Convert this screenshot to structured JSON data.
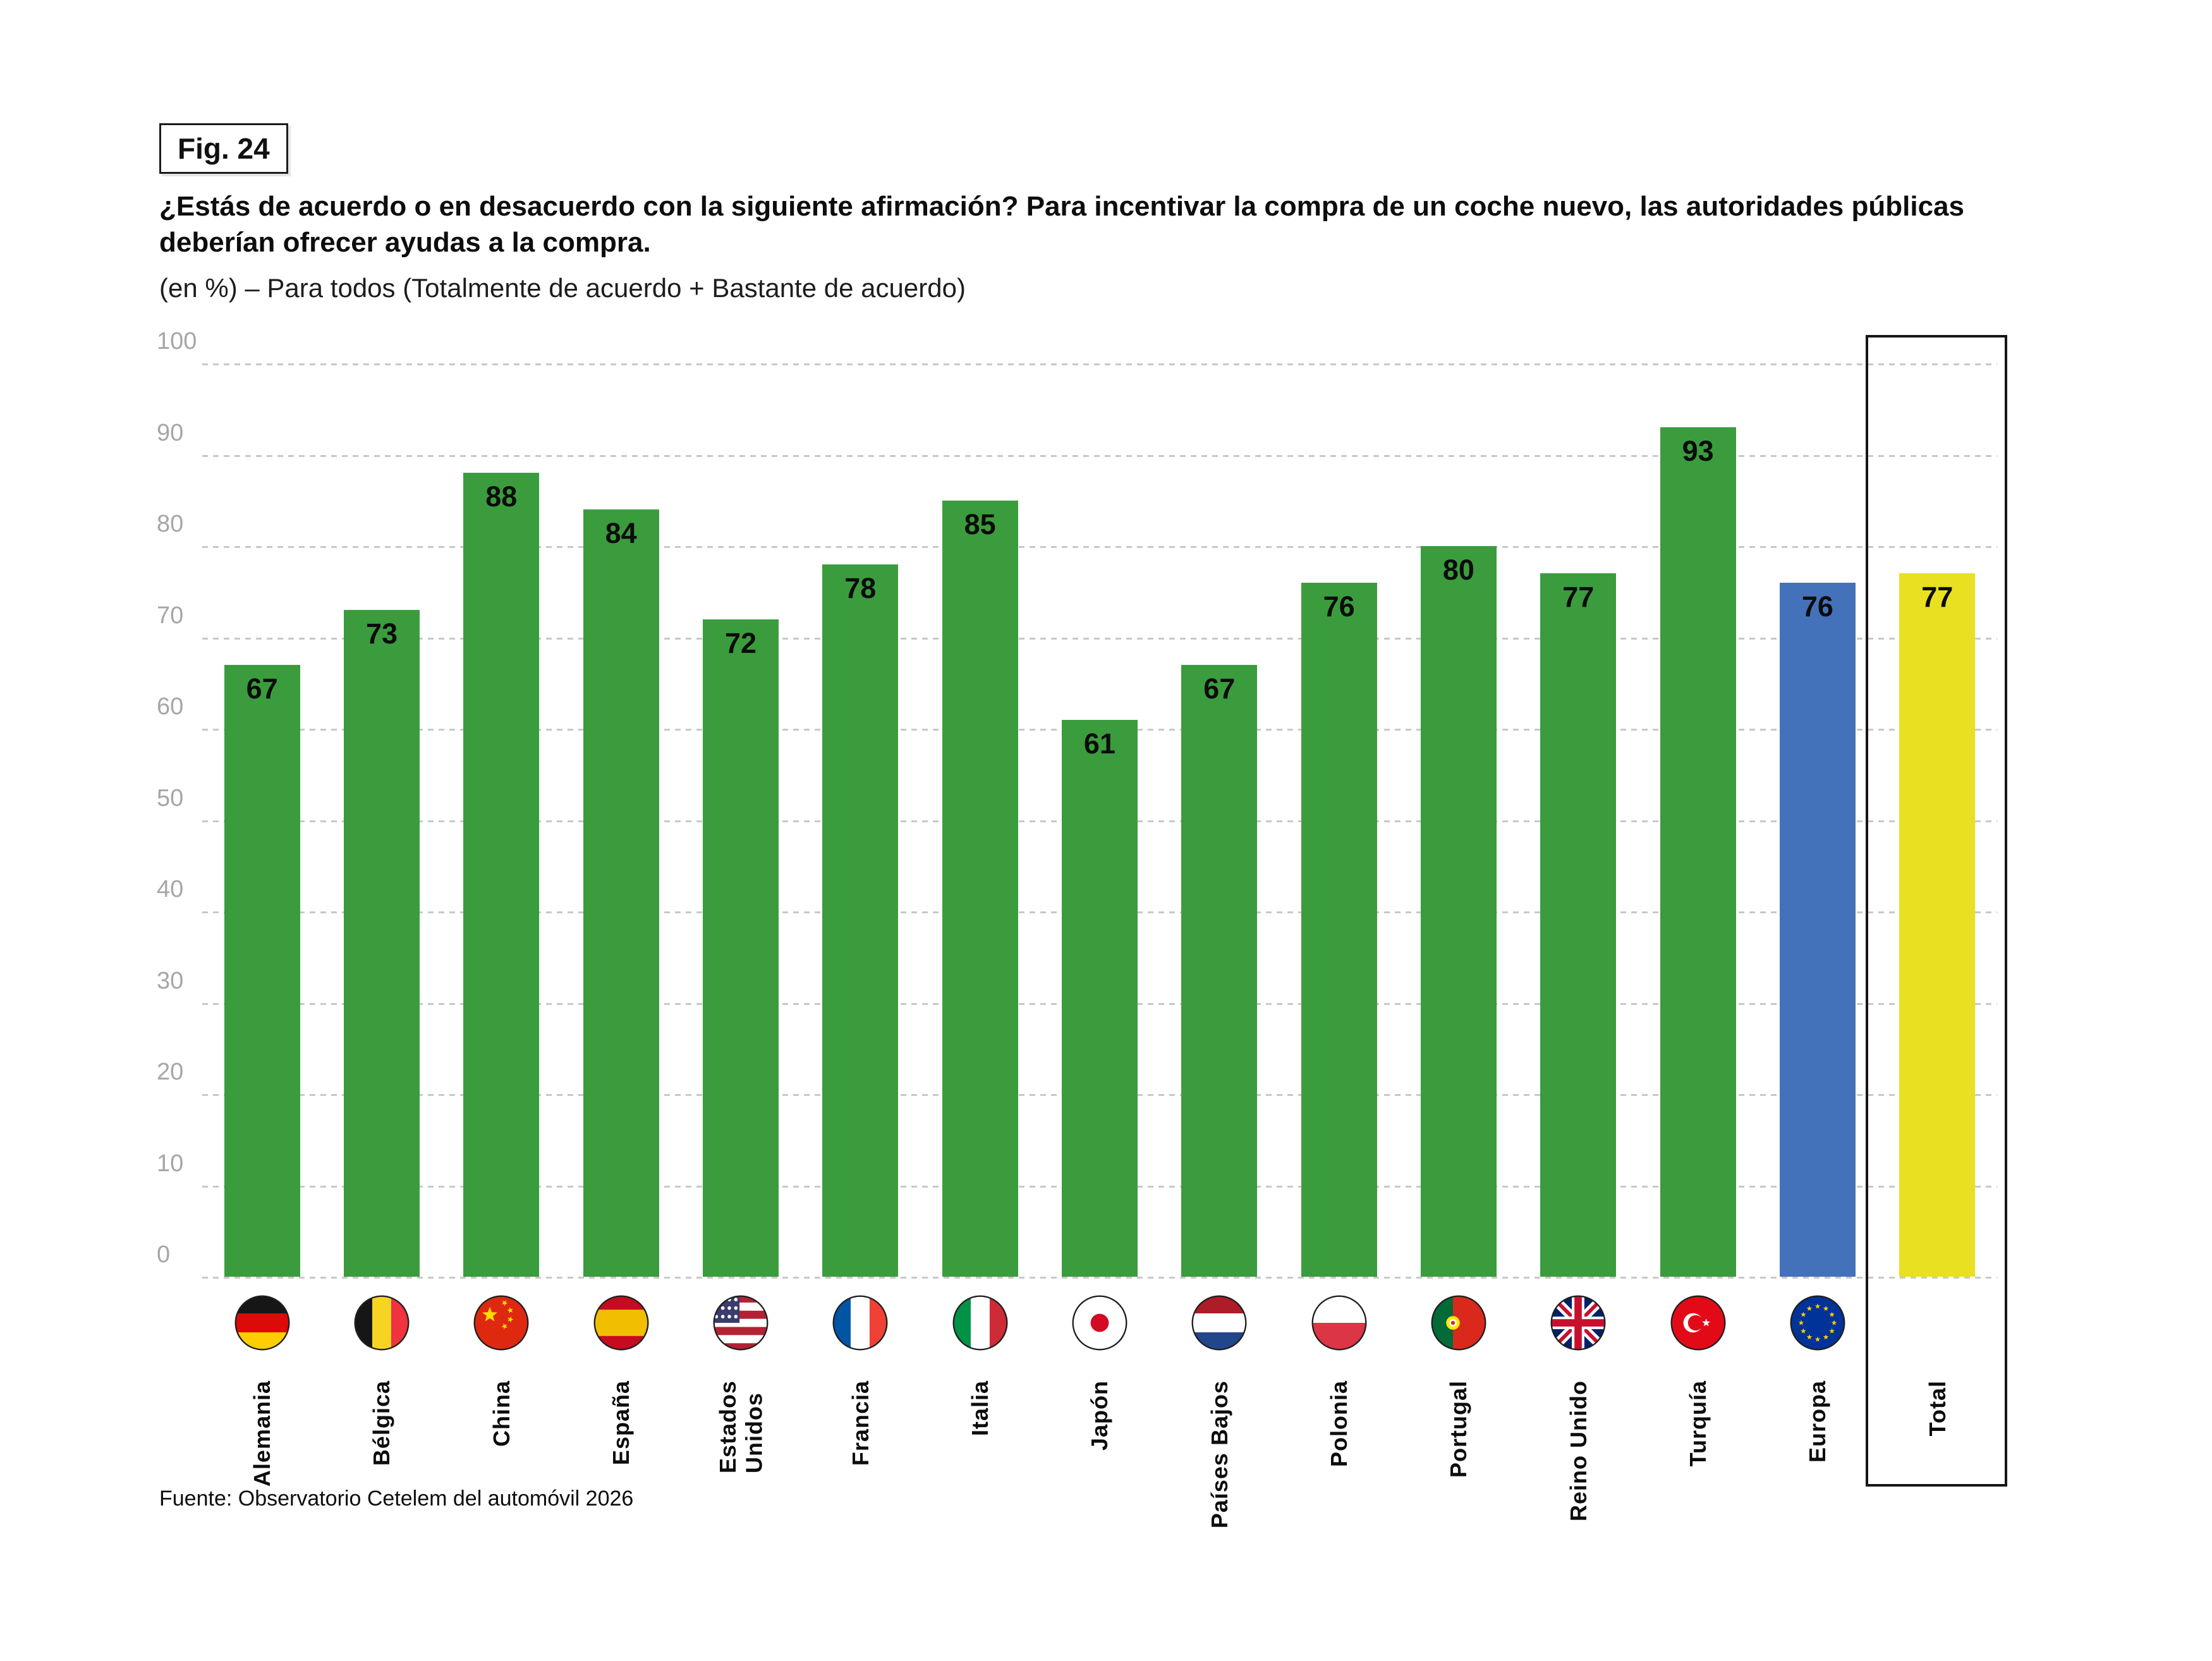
{
  "figure": {
    "badge": "Fig. 24"
  },
  "header": {
    "title": "¿Estás de acuerdo o en desacuerdo con la siguiente afirmación? Para incentivar la compra de un coche nuevo, las autoridades públicas\ndeberían ofrecer ayudas a la compra.",
    "subtitle": "(en %) – Para todos (Totalmente de acuerdo + Bastante de acuerdo)"
  },
  "footer": {
    "source": "Fuente: Observatorio Cetelem del automóvil 2026"
  },
  "colors": {
    "bar_green": "#3B9C3D",
    "bar_blue": "#4472BA",
    "bar_yellow": "#E8E020",
    "grid_line": "#C8C8C8",
    "axis_label": "#A6A6A6",
    "value_label": "#0C0C0C"
  },
  "chart_data": {
    "type": "bar",
    "title": "¿Estás de acuerdo o en desacuerdo con la siguiente afirmación? Para incentivar la compra de un coche nuevo, las autoridades públicas deberían ofrecer ayudas a la compra.",
    "subtitle": "(en %) – Para todos (Totalmente de acuerdo + Bastante de acuerdo)",
    "xlabel": "",
    "ylabel": "",
    "ylim": [
      0,
      100
    ],
    "yticks": [
      0,
      10,
      20,
      30,
      40,
      50,
      60,
      70,
      80,
      90,
      100
    ],
    "grid": "horizontal-dashed",
    "legend": "none",
    "categories": [
      "Alemania",
      "Bélgica",
      "China",
      "España",
      "Estados Unidos",
      "Francia",
      "Italia",
      "Japón",
      "Países Bajos",
      "Polonia",
      "Portugal",
      "Reino Unido",
      "Turquía",
      "Europa",
      "Total"
    ],
    "values": [
      67,
      73,
      88,
      84,
      72,
      78,
      85,
      61,
      67,
      76,
      80,
      77,
      93,
      76,
      77
    ],
    "items": [
      {
        "label": "Alemania",
        "value": 67,
        "color": "bar_green",
        "flag": "flag-germany",
        "boxed": false
      },
      {
        "label": "Bélgica",
        "value": 73,
        "color": "bar_green",
        "flag": "flag-belgium",
        "boxed": false
      },
      {
        "label": "China",
        "value": 88,
        "color": "bar_green",
        "flag": "flag-china",
        "boxed": false
      },
      {
        "label": "España",
        "value": 84,
        "color": "bar_green",
        "flag": "flag-spain",
        "boxed": false
      },
      {
        "label": "Estados\nUnidos",
        "value": 72,
        "color": "bar_green",
        "flag": "flag-usa",
        "boxed": false
      },
      {
        "label": "Francia",
        "value": 78,
        "color": "bar_green",
        "flag": "flag-france",
        "boxed": false
      },
      {
        "label": "Italia",
        "value": 85,
        "color": "bar_green",
        "flag": "flag-italy",
        "boxed": false
      },
      {
        "label": "Japón",
        "value": 61,
        "color": "bar_green",
        "flag": "flag-japan",
        "boxed": false
      },
      {
        "label": "Países Bajos",
        "value": 67,
        "color": "bar_green",
        "flag": "flag-netherlands",
        "boxed": false
      },
      {
        "label": "Polonia",
        "value": 76,
        "color": "bar_green",
        "flag": "flag-poland",
        "boxed": false
      },
      {
        "label": "Portugal",
        "value": 80,
        "color": "bar_green",
        "flag": "flag-portugal",
        "boxed": false
      },
      {
        "label": "Reino Unido",
        "value": 77,
        "color": "bar_green",
        "flag": "flag-uk",
        "boxed": false
      },
      {
        "label": "Turquía",
        "value": 93,
        "color": "bar_green",
        "flag": "flag-turkey",
        "boxed": false
      },
      {
        "label": "Europa",
        "value": 76,
        "color": "bar_blue",
        "flag": "flag-europe",
        "boxed": false
      },
      {
        "label": "Total",
        "value": 77,
        "color": "bar_yellow",
        "flag": null,
        "boxed": true
      }
    ]
  }
}
